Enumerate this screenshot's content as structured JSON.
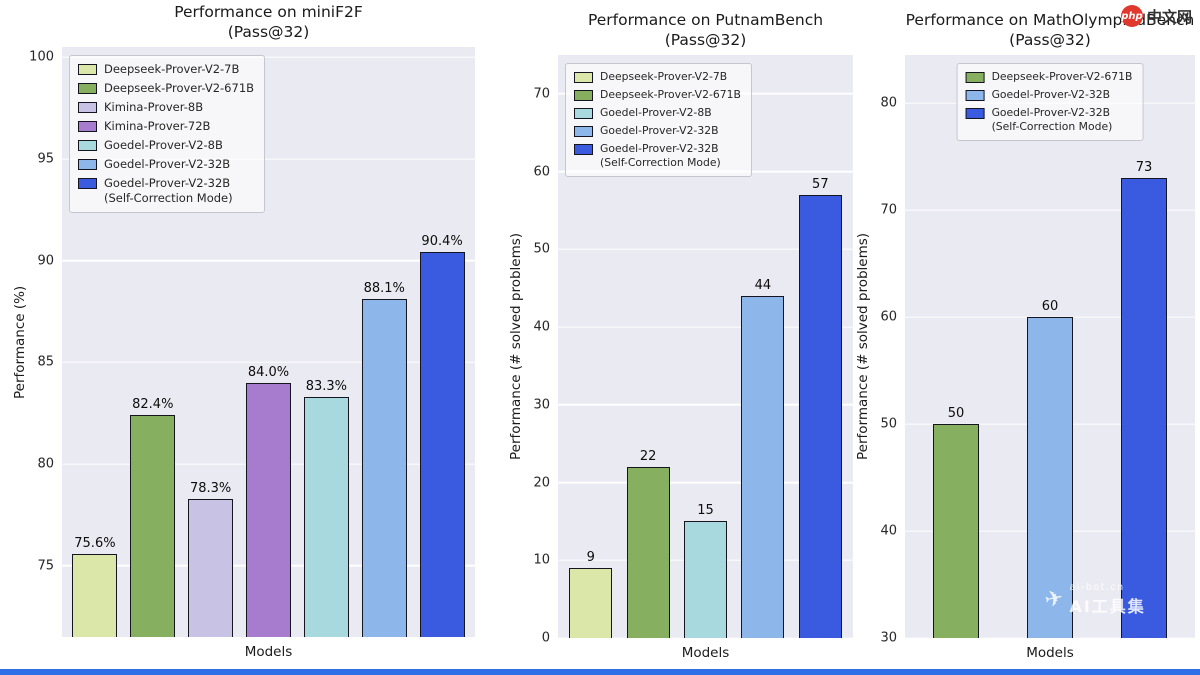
{
  "page": {
    "logo": {
      "badge": "php",
      "site": "中文网",
      "badge_color": "#e0382d"
    },
    "watermark": {
      "site": "ai-bot.cn",
      "name": "AI工具集"
    }
  },
  "chart_data": [
    {
      "type": "bar",
      "title": "Performance on miniF2F",
      "subtitle": "(Pass@32)",
      "xlabel": "Models",
      "ylabel": "Performance (%)",
      "ylim": [
        71.5,
        100.5
      ],
      "yticks": [
        75,
        80,
        85,
        90,
        95,
        100
      ],
      "grid": true,
      "plot_bg": "#eaeaf2",
      "edge_color": "#15151f",
      "legend_position": "top-left",
      "legend_fontsize": 11.5,
      "bar_width_pct": 78,
      "series": [
        {
          "name": "Deepseek-Prover-V2-7B",
          "value": 75.6,
          "label": "75.6%",
          "color": "#dbe7a8"
        },
        {
          "name": "Deepseek-Prover-V2-671B",
          "value": 82.4,
          "label": "82.4%",
          "color": "#86b05f"
        },
        {
          "name": "Kimina-Prover-8B",
          "value": 78.3,
          "label": "78.3%",
          "color": "#c8c2e4"
        },
        {
          "name": "Kimina-Prover-72B",
          "value": 84.0,
          "label": "84.0%",
          "color": "#a77bce"
        },
        {
          "name": "Goedel-Prover-V2-8B",
          "value": 83.3,
          "label": "83.3%",
          "color": "#a8d9de"
        },
        {
          "name": "Goedel-Prover-V2-32B",
          "value": 88.1,
          "label": "88.1%",
          "color": "#8db6ea"
        },
        {
          "name": "Goedel-Prover-V2-32B\n (Self-Correction Mode)",
          "value": 90.4,
          "label": "90.4%",
          "color": "#3a5be0"
        }
      ]
    },
    {
      "type": "bar",
      "title": "Performance on PutnamBench",
      "subtitle": "(Pass@32)",
      "xlabel": "Models",
      "ylabel": "Performance (# solved problems)",
      "ylim": [
        0,
        75
      ],
      "yticks": [
        0,
        10,
        20,
        30,
        40,
        50,
        60,
        70
      ],
      "grid": true,
      "plot_bg": "#eaeaf2",
      "edge_color": "#15151f",
      "legend_position": "top-left",
      "legend_fontsize": 10.8,
      "bar_width_pct": 75,
      "series": [
        {
          "name": "Deepseek-Prover-V2-7B",
          "value": 9,
          "label": "9",
          "color": "#dbe7a8"
        },
        {
          "name": "Deepseek-Prover-V2-671B",
          "value": 22,
          "label": "22",
          "color": "#86b05f"
        },
        {
          "name": "Goedel-Prover-V2-8B",
          "value": 15,
          "label": "15",
          "color": "#a8d9de"
        },
        {
          "name": "Goedel-Prover-V2-32B",
          "value": 44,
          "label": "44",
          "color": "#8db6ea"
        },
        {
          "name": "Goedel-Prover-V2-32B\n (Self-Correction Mode)",
          "value": 57,
          "label": "57",
          "color": "#3a5be0"
        }
      ]
    },
    {
      "type": "bar",
      "title": "Performance on MathOlympiadBench",
      "subtitle": "(Pass@32)",
      "xlabel": "Models",
      "ylabel": "Performance (# solved problems)",
      "ylim": [
        30,
        84.5
      ],
      "yticks": [
        30,
        40,
        50,
        60,
        70,
        80
      ],
      "grid": true,
      "plot_bg": "#eaeaf2",
      "edge_color": "#15151f",
      "legend_position": "top-center",
      "legend_fontsize": 10.8,
      "bar_width_pct": 48,
      "series": [
        {
          "name": "Deepseek-Prover-V2-671B",
          "value": 50,
          "label": "50",
          "color": "#86b05f"
        },
        {
          "name": "Goedel-Prover-V2-32B",
          "value": 60,
          "label": "60",
          "color": "#8db6ea"
        },
        {
          "name": "Goedel-Prover-V2-32B\n (Self-Correction Mode)",
          "value": 73,
          "label": "73",
          "color": "#3a5be0"
        }
      ]
    }
  ]
}
